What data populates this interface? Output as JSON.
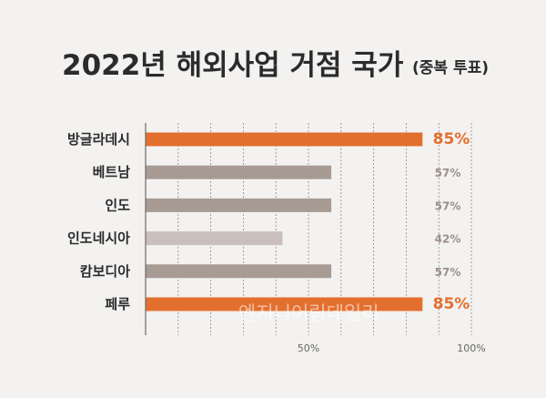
{
  "title": "2022년 해외사업 거점 국가",
  "subtitle": "(중복 투표)",
  "watermark": "엔지니어링데일리",
  "colors": {
    "highlight": "#e36f2e",
    "normal": "#a79b94",
    "light": "#c9bfbc",
    "grid": "#8a8a8a",
    "axis": "#6b6b6b"
  },
  "chart_data": {
    "type": "bar",
    "orientation": "horizontal",
    "categories": [
      "방글라데시",
      "베트남",
      "인도",
      "인도네시아",
      "캄보디아",
      "페루"
    ],
    "values": [
      85,
      57,
      57,
      42,
      57,
      85
    ],
    "value_labels": [
      "85%",
      "57%",
      "57%",
      "42%",
      "57%",
      "85%"
    ],
    "bar_colors": [
      "#e36f2e",
      "#a79b94",
      "#a79b94",
      "#c9bfbc",
      "#a79b94",
      "#e36f2e"
    ],
    "xlim": [
      0,
      100
    ],
    "x_tick_labels": [
      {
        "value": 50,
        "label": "50%"
      },
      {
        "value": 100,
        "label": "100%"
      }
    ],
    "grid": true,
    "grid_values": [
      10,
      20,
      30,
      40,
      50,
      60,
      70,
      80,
      90,
      100
    ],
    "title": "2022년 해외사업 거점 국가",
    "xlabel": "",
    "ylabel": ""
  }
}
